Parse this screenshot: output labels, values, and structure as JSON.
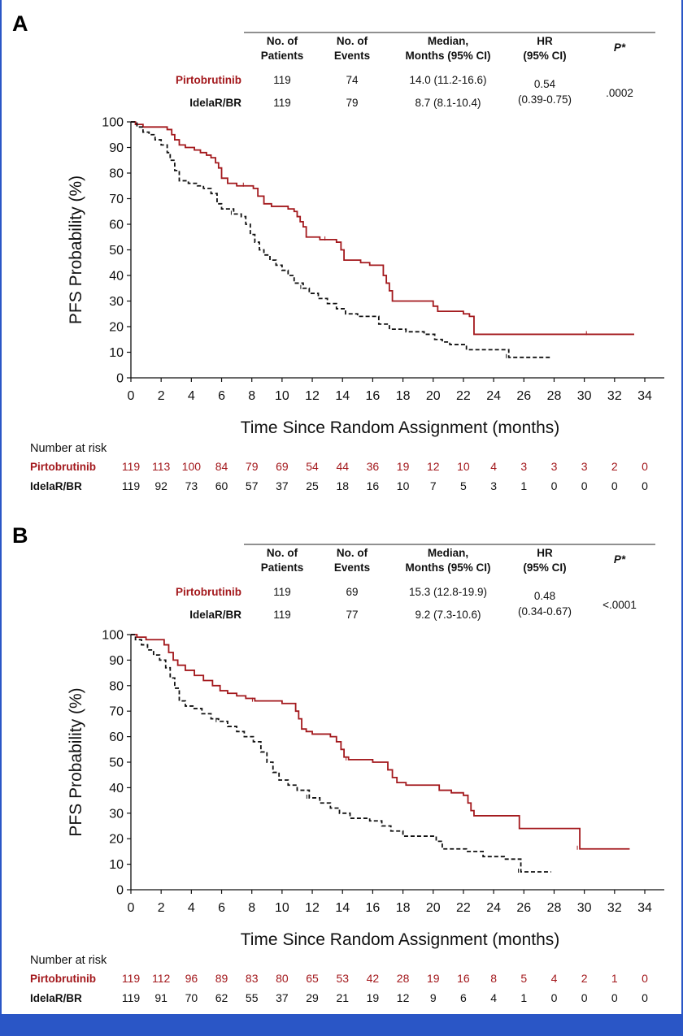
{
  "colors": {
    "pirtobrutinib": "#a3181c",
    "idelar": "#111111",
    "frame": "#2a56c6"
  },
  "table_headers": {
    "patients": [
      "No. of",
      "Patients"
    ],
    "events": [
      "No. of",
      "Events"
    ],
    "median": [
      "Median,",
      "Months (95% CI)"
    ],
    "hr": [
      "HR",
      "(95% CI)"
    ],
    "p": "P*"
  },
  "chart_data": [
    {
      "type": "line",
      "panel": "A",
      "ylabel": "PFS Probability (%)",
      "xlabel": "Time Since Random Assignment (months)",
      "xlim": [
        0,
        34
      ],
      "ylim": [
        0,
        100
      ],
      "xticks": [
        0,
        2,
        4,
        6,
        8,
        10,
        12,
        14,
        16,
        18,
        20,
        22,
        24,
        26,
        28,
        30,
        32,
        34
      ],
      "yticks": [
        0,
        10,
        20,
        30,
        40,
        50,
        60,
        70,
        80,
        90,
        100
      ],
      "table": {
        "rows": [
          {
            "arm": "Pirtobrutinib",
            "patients": "119",
            "events": "74",
            "median": "14.0 (11.2-16.6)"
          },
          {
            "arm": "IdelaR/BR",
            "patients": "119",
            "events": "79",
            "median": "8.7 (8.1-10.4)"
          }
        ],
        "hr": "0.54",
        "hr_ci": "(0.39-0.75)",
        "p": ".0002"
      },
      "risk": {
        "header": "Number at risk",
        "times": [
          0,
          2,
          4,
          6,
          8,
          10,
          12,
          14,
          16,
          18,
          20,
          22,
          24,
          26,
          28,
          30,
          32,
          34
        ],
        "rows": [
          {
            "arm": "Pirtobrutinib",
            "values": [
              "119",
              "113",
              "100",
              "84",
              "79",
              "69",
              "54",
              "44",
              "36",
              "19",
              "12",
              "10",
              "4",
              "3",
              "3",
              "3",
              "2",
              "0"
            ]
          },
          {
            "arm": "IdelaR/BR",
            "values": [
              "119",
              "92",
              "73",
              "60",
              "57",
              "37",
              "25",
              "18",
              "16",
              "10",
              "7",
              "5",
              "3",
              "1",
              "0",
              "0",
              "0",
              "0"
            ]
          }
        ]
      },
      "series": [
        {
          "name": "Pirtobrutinib",
          "style": "solid",
          "x": [
            0,
            0.3,
            0.8,
            1.5,
            2.0,
            2.4,
            2.7,
            2.9,
            3.2,
            3.6,
            4.2,
            4.6,
            5.0,
            5.3,
            5.6,
            5.8,
            6.0,
            6.4,
            7.0,
            7.6,
            8.1,
            8.4,
            8.8,
            9.3,
            9.8,
            10.4,
            10.8,
            11.0,
            11.2,
            11.4,
            11.6,
            12.0,
            12.5,
            13.0,
            13.6,
            13.9,
            14.1,
            14.6,
            15.2,
            15.8,
            16.5,
            16.7,
            16.9,
            17.1,
            17.3,
            18.5,
            19.5,
            20.0,
            20.3,
            21.3,
            22.0,
            22.4,
            22.7,
            25.0,
            30.3,
            33.3
          ],
          "y": [
            100,
            99,
            98,
            98,
            98,
            97,
            95,
            93,
            91,
            90,
            89,
            88,
            87,
            86,
            84,
            82,
            78,
            76,
            75,
            75,
            74,
            71,
            68,
            67,
            67,
            66,
            65,
            63,
            61,
            59,
            55,
            55,
            54,
            54,
            53,
            50,
            46,
            46,
            45,
            44,
            44,
            40,
            37,
            34,
            30,
            30,
            30,
            28,
            26,
            26,
            25,
            24,
            17,
            17,
            17,
            17
          ]
        },
        {
          "name": "IdelaR/BR",
          "style": "dashed",
          "x": [
            0,
            0.4,
            0.8,
            1.2,
            1.6,
            2.0,
            2.4,
            2.6,
            2.9,
            3.2,
            3.8,
            4.4,
            4.8,
            5.3,
            5.7,
            6.0,
            6.8,
            7.3,
            7.6,
            7.9,
            8.2,
            8.5,
            8.8,
            9.2,
            9.6,
            10.0,
            10.4,
            10.8,
            11.4,
            11.8,
            12.4,
            13.0,
            13.6,
            14.2,
            15.0,
            16.0,
            16.4,
            17.1,
            18.2,
            19.4,
            20.1,
            20.6,
            21.1,
            22.2,
            24.7,
            25.0,
            27.8
          ],
          "y": [
            100,
            98,
            96,
            95,
            93,
            91,
            88,
            85,
            81,
            77,
            76,
            75,
            74,
            72,
            68,
            66,
            64,
            63,
            60,
            56,
            53,
            50,
            48,
            46,
            44,
            42,
            40,
            37,
            35,
            33,
            31,
            29,
            27,
            25,
            24,
            24,
            21,
            19,
            18,
            17,
            15,
            14,
            13,
            11,
            11,
            8,
            8
          ]
        }
      ]
    },
    {
      "type": "line",
      "panel": "B",
      "ylabel": "PFS Probability (%)",
      "xlabel": "Time Since Random Assignment (months)",
      "xlim": [
        0,
        34
      ],
      "ylim": [
        0,
        100
      ],
      "xticks": [
        0,
        2,
        4,
        6,
        8,
        10,
        12,
        14,
        16,
        18,
        20,
        22,
        24,
        26,
        28,
        30,
        32,
        34
      ],
      "yticks": [
        0,
        10,
        20,
        30,
        40,
        50,
        60,
        70,
        80,
        90,
        100
      ],
      "table": {
        "rows": [
          {
            "arm": "Pirtobrutinib",
            "patients": "119",
            "events": "69",
            "median": "15.3 (12.8-19.9)"
          },
          {
            "arm": "IdelaR/BR",
            "patients": "119",
            "events": "77",
            "median": "9.2 (7.3-10.6)"
          }
        ],
        "hr": "0.48",
        "hr_ci": "(0.34-0.67)",
        "p": "<.0001"
      },
      "risk": {
        "header": "Number at risk",
        "times": [
          0,
          2,
          4,
          6,
          8,
          10,
          12,
          14,
          16,
          18,
          20,
          22,
          24,
          26,
          28,
          30,
          32,
          34
        ],
        "rows": [
          {
            "arm": "Pirtobrutinib",
            "values": [
              "119",
              "112",
              "96",
              "89",
              "83",
              "80",
              "65",
              "53",
              "42",
              "28",
              "19",
              "16",
              "8",
              "5",
              "4",
              "2",
              "1",
              "0"
            ]
          },
          {
            "arm": "IdelaR/BR",
            "values": [
              "119",
              "91",
              "70",
              "62",
              "55",
              "37",
              "29",
              "21",
              "19",
              "12",
              "9",
              "6",
              "4",
              "1",
              "0",
              "0",
              "0",
              "0"
            ]
          }
        ]
      },
      "series": [
        {
          "name": "Pirtobrutinib",
          "style": "solid",
          "x": [
            0,
            0.4,
            1.0,
            1.6,
            2.2,
            2.5,
            2.8,
            3.1,
            3.6,
            4.2,
            4.8,
            5.4,
            5.9,
            6.4,
            7.0,
            7.6,
            8.2,
            9.2,
            10.0,
            10.9,
            11.1,
            11.3,
            11.6,
            12.0,
            13.2,
            13.6,
            13.9,
            14.1,
            14.4,
            15.1,
            16.0,
            16.6,
            17.0,
            17.3,
            17.6,
            18.2,
            19.2,
            20.1,
            20.4,
            21.2,
            22.0,
            22.3,
            22.5,
            22.7,
            25.7,
            29.7,
            33.0
          ],
          "y": [
            100,
            99,
            98,
            98,
            96,
            93,
            90,
            88,
            86,
            84,
            82,
            80,
            78,
            77,
            76,
            75,
            74,
            74,
            73,
            70,
            67,
            63,
            62,
            61,
            60,
            58,
            55,
            52,
            51,
            51,
            50,
            50,
            47,
            44,
            42,
            41,
            41,
            41,
            39,
            38,
            37,
            34,
            31,
            29,
            24,
            16,
            16
          ]
        },
        {
          "name": "IdelaR/BR",
          "style": "dashed",
          "x": [
            0,
            0.3,
            0.7,
            1.1,
            1.5,
            1.9,
            2.3,
            2.6,
            2.9,
            3.2,
            3.6,
            4.1,
            4.7,
            5.3,
            5.8,
            6.4,
            7.0,
            7.5,
            8.1,
            8.6,
            9.0,
            9.4,
            9.8,
            10.4,
            11.0,
            11.8,
            12.5,
            13.2,
            13.8,
            14.5,
            15.8,
            16.6,
            17.2,
            18.0,
            19.0,
            20.2,
            20.6,
            22.2,
            23.3,
            24.7,
            25.8,
            27.8
          ],
          "y": [
            100,
            98,
            96,
            94,
            92,
            90,
            87,
            83,
            79,
            74,
            72,
            71,
            69,
            67,
            66,
            64,
            62,
            60,
            58,
            54,
            50,
            46,
            43,
            41,
            39,
            36,
            34,
            32,
            30,
            28,
            27,
            25,
            23,
            21,
            21,
            19,
            16,
            15,
            13,
            12,
            7,
            7
          ]
        }
      ]
    }
  ]
}
